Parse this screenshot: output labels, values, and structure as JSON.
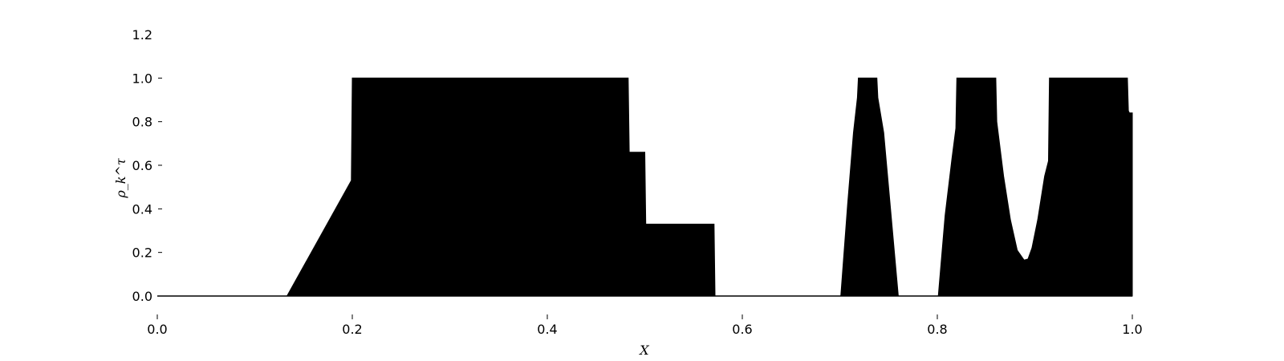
{
  "chart_data": {
    "type": "area",
    "title": "",
    "xlabel": "X",
    "ylabel": "ρ_k^τ",
    "xlim": [
      0.0,
      1.0
    ],
    "ylim": [
      0.0,
      1.2
    ],
    "grid": false,
    "x_ticks": [
      "0.0",
      "0.2",
      "0.4",
      "0.6",
      "0.8",
      "1.0"
    ],
    "y_ticks": [
      "0.0",
      "0.2",
      "0.4",
      "0.6",
      "0.8",
      "1.0",
      "1.2"
    ],
    "fill_color": "#000000",
    "series": [
      {
        "x": [
          0.0,
          0.133,
          0.199,
          0.2,
          0.483,
          0.484,
          0.5,
          0.501,
          0.571,
          0.572,
          0.701,
          0.708,
          0.714,
          0.718,
          0.719,
          0.738,
          0.739,
          0.745,
          0.752,
          0.76,
          0.761,
          0.801,
          0.808,
          0.815,
          0.819,
          0.82,
          0.86,
          0.861,
          0.868,
          0.875,
          0.882,
          0.889,
          0.893,
          0.897,
          0.903,
          0.91,
          0.914,
          0.915,
          0.995,
          0.996,
          0.997,
          1.0
        ],
        "y": [
          0.0,
          0.0,
          0.53,
          1.0,
          1.0,
          0.66,
          0.66,
          0.33,
          0.33,
          0.0,
          0.0,
          0.42,
          0.75,
          0.91,
          1.0,
          1.0,
          0.91,
          0.75,
          0.4,
          0.0,
          0.0,
          0.0,
          0.37,
          0.63,
          0.77,
          1.0,
          1.0,
          0.8,
          0.55,
          0.35,
          0.21,
          0.165,
          0.17,
          0.22,
          0.35,
          0.55,
          0.62,
          1.0,
          1.0,
          0.85,
          0.84,
          0.84
        ]
      }
    ]
  }
}
